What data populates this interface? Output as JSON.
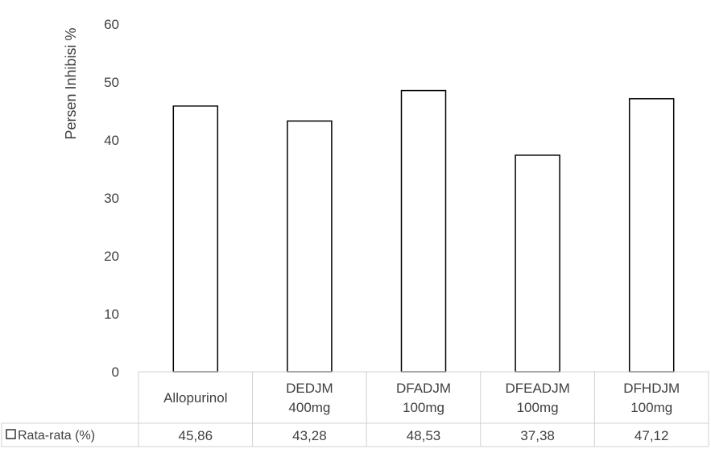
{
  "chart_data": {
    "type": "bar",
    "title": "",
    "xlabel": "",
    "ylabel": "Persen Inhibisi %",
    "ylim": [
      0,
      60
    ],
    "yticks": [
      0,
      10,
      20,
      30,
      40,
      50,
      60
    ],
    "grid": false,
    "categories": [
      "Allopurinol",
      "DEDJM 400mg",
      "DFADJM 100mg",
      "DFEADJM 100mg",
      "DFHDJM 100mg"
    ],
    "series": [
      {
        "name": "Rata-rata (%)",
        "values": [
          45.86,
          43.28,
          48.53,
          37.38,
          47.12
        ],
        "labels": [
          "45,86",
          "43,28",
          "48,53",
          "37,38",
          "47,12"
        ],
        "color": "#ffffff",
        "stroke": "#000000"
      }
    ],
    "legend": "data-table-left"
  }
}
